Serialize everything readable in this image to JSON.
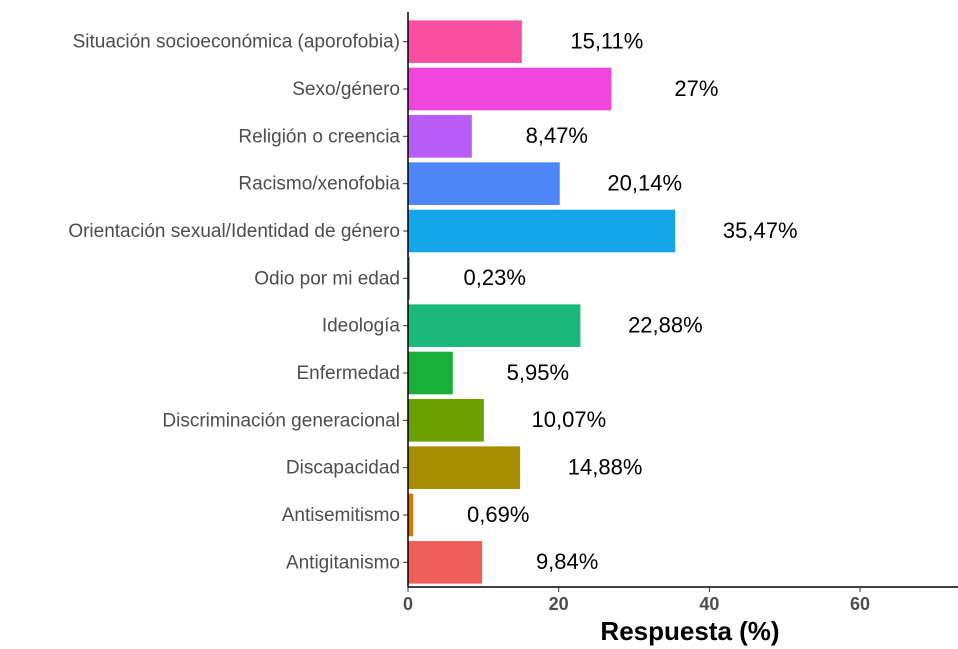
{
  "chart_data": {
    "type": "barh",
    "categories": [
      "Situación socioeconómica (aporofobia)",
      "Sexo/género",
      "Religión o creencia",
      "Racismo/xenofobia",
      "Orientación sexual/Identidad de género",
      "Odio por mi edad",
      "Ideología",
      "Enfermedad",
      "Discriminación generacional",
      "Discapacidad",
      "Antisemitismo",
      "Antigitanismo"
    ],
    "values": [
      15.11,
      27,
      8.47,
      20.14,
      35.47,
      0.23,
      22.88,
      5.95,
      10.07,
      14.88,
      0.69,
      9.84
    ],
    "value_labels": [
      "15,11%",
      "27%",
      "8,47%",
      "20,14%",
      "35,47%",
      "0,23%",
      "22,88%",
      "5,95%",
      "10,07%",
      "14,88%",
      "0,69%",
      "9,84%"
    ],
    "colors": [
      "#F94FA0",
      "#F046DE",
      "#B85CF5",
      "#4F86F7",
      "#14A6E8",
      "#00A8A8",
      "#1BB87C",
      "#1AAE3A",
      "#6AA100",
      "#A68E00",
      "#D07A00",
      "#F05E5A"
    ],
    "xlabel": "Respuesta (%)",
    "xlim": [
      0,
      73
    ],
    "xticks": [
      0,
      20,
      40,
      60
    ]
  }
}
